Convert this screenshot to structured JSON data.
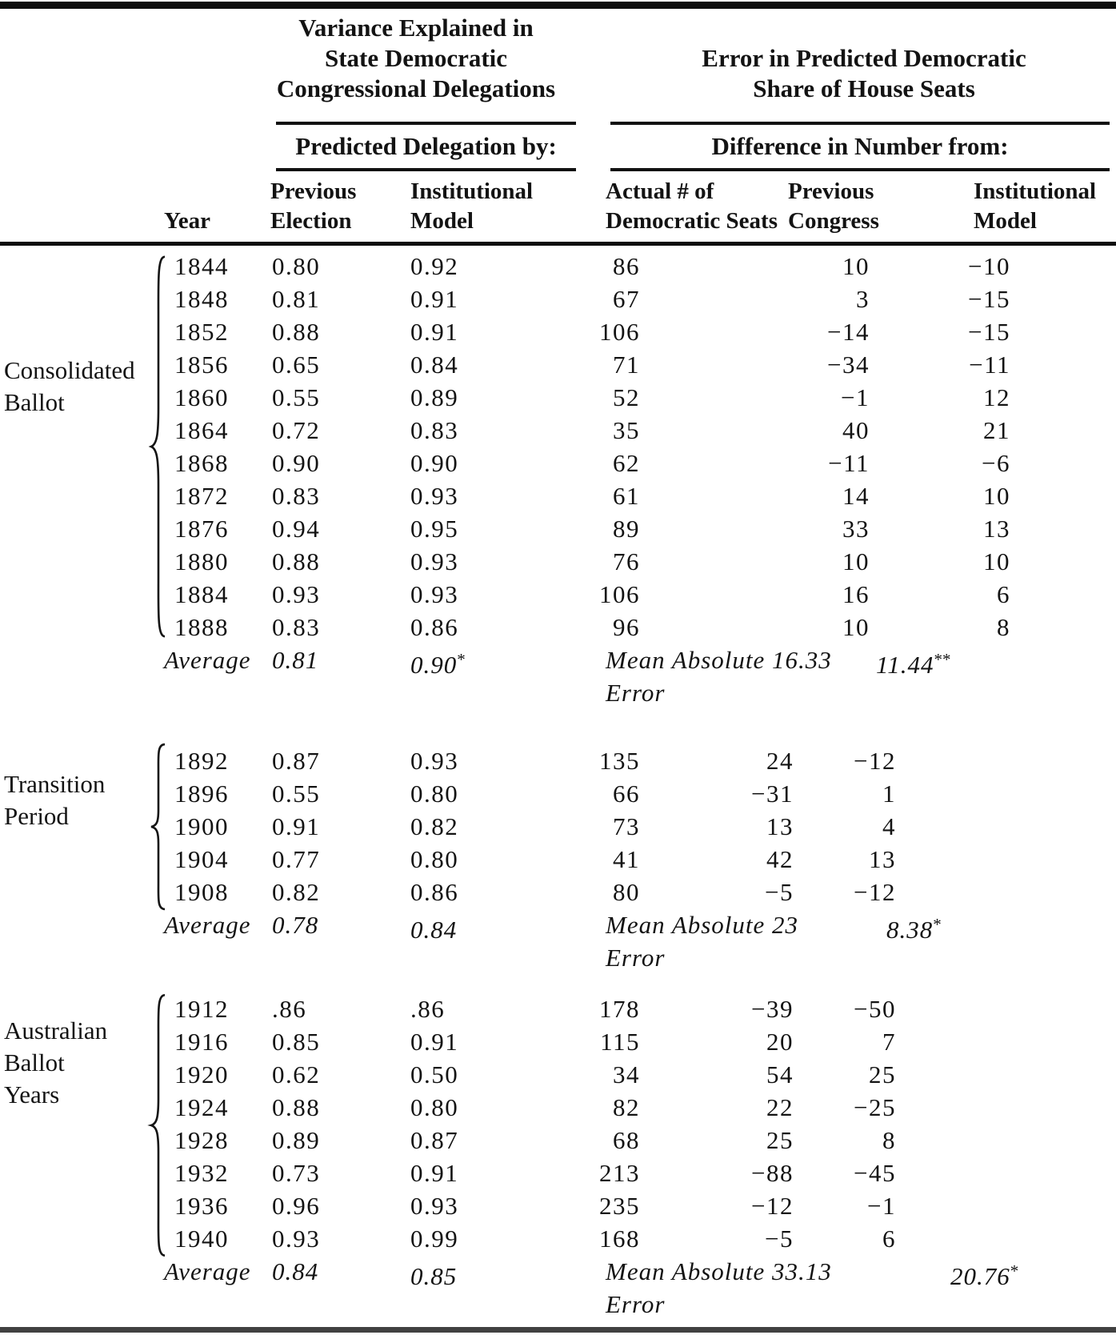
{
  "header": {
    "variance_title": "Variance Explained in\nState Democratic\nCongressional Delegations",
    "error_title": "Error in Predicted Democratic\nShare of House Seats",
    "left_subheader": "Predicted Delegation by:",
    "right_subheader": "Difference in Number from:",
    "col_year": "Year",
    "col_prev_election": "Previous\nElection",
    "col_inst_model": "Institutional\nModel",
    "col_actual_seats": "Actual # of\nDemocratic Seats",
    "col_prev_congress": "Previous\nCongress",
    "col_inst_model_err": "Institutional\nModel"
  },
  "groups": [
    {
      "label": "Consolidated\nBallot",
      "rows": [
        {
          "year": "1844",
          "prev_election": "0.80",
          "inst_model": "0.92",
          "actual_seats": "86",
          "prev_congress": "10",
          "inst_model_err": "−10"
        },
        {
          "year": "1848",
          "prev_election": "0.81",
          "inst_model": "0.91",
          "actual_seats": "67",
          "prev_congress": "3",
          "inst_model_err": "−15"
        },
        {
          "year": "1852",
          "prev_election": "0.88",
          "inst_model": "0.91",
          "actual_seats": "106",
          "prev_congress": "−14",
          "inst_model_err": "−15"
        },
        {
          "year": "1856",
          "prev_election": "0.65",
          "inst_model": "0.84",
          "actual_seats": "71",
          "prev_congress": "−34",
          "inst_model_err": "−11"
        },
        {
          "year": "1860",
          "prev_election": "0.55",
          "inst_model": "0.89",
          "actual_seats": "52",
          "prev_congress": "−1",
          "inst_model_err": "12"
        },
        {
          "year": "1864",
          "prev_election": "0.72",
          "inst_model": "0.83",
          "actual_seats": "35",
          "prev_congress": "40",
          "inst_model_err": "21"
        },
        {
          "year": "1868",
          "prev_election": "0.90",
          "inst_model": "0.90",
          "actual_seats": "62",
          "prev_congress": "−11",
          "inst_model_err": "−6"
        },
        {
          "year": "1872",
          "prev_election": "0.83",
          "inst_model": "0.93",
          "actual_seats": "61",
          "prev_congress": "14",
          "inst_model_err": "10"
        },
        {
          "year": "1876",
          "prev_election": "0.94",
          "inst_model": "0.95",
          "actual_seats": "89",
          "prev_congress": "33",
          "inst_model_err": "13"
        },
        {
          "year": "1880",
          "prev_election": "0.88",
          "inst_model": "0.93",
          "actual_seats": "76",
          "prev_congress": "10",
          "inst_model_err": "10"
        },
        {
          "year": "1884",
          "prev_election": "0.93",
          "inst_model": "0.93",
          "actual_seats": "106",
          "prev_congress": "16",
          "inst_model_err": "6"
        },
        {
          "year": "1888",
          "prev_election": "0.83",
          "inst_model": "0.86",
          "actual_seats": "96",
          "prev_congress": "10",
          "inst_model_err": "8"
        }
      ],
      "summary": {
        "label": "Average",
        "prev_election": "0.81",
        "inst_model": "0.90",
        "inst_model_note": "*",
        "error_label": "Mean Absolute\nError",
        "prev_congress": "16.33",
        "inst_model_err": "11.44",
        "inst_model_err_note": "**"
      }
    },
    {
      "label": "Transition\nPeriod",
      "rows": [
        {
          "year": "1892",
          "prev_election": "0.87",
          "inst_model": "0.93",
          "actual_seats": "135",
          "prev_congress": "24",
          "inst_model_err": "−12"
        },
        {
          "year": "1896",
          "prev_election": "0.55",
          "inst_model": "0.80",
          "actual_seats": "66",
          "prev_congress": "−31",
          "inst_model_err": "1"
        },
        {
          "year": "1900",
          "prev_election": "0.91",
          "inst_model": "0.82",
          "actual_seats": "73",
          "prev_congress": "13",
          "inst_model_err": "4"
        },
        {
          "year": "1904",
          "prev_election": "0.77",
          "inst_model": "0.80",
          "actual_seats": "41",
          "prev_congress": "42",
          "inst_model_err": "13"
        },
        {
          "year": "1908",
          "prev_election": "0.82",
          "inst_model": "0.86",
          "actual_seats": "80",
          "prev_congress": "−5",
          "inst_model_err": "−12"
        }
      ],
      "summary": {
        "label": "Average",
        "prev_election": "0.78",
        "inst_model": "0.84",
        "inst_model_note": "",
        "error_label": "Mean Absolute\nError",
        "prev_congress": "23",
        "inst_model_err": "8.38",
        "inst_model_err_note": "*"
      }
    },
    {
      "label": "Australian\nBallot\nYears",
      "rows": [
        {
          "year": "1912",
          "prev_election": ".86",
          "inst_model": ".86",
          "actual_seats": "178",
          "prev_congress": "−39",
          "inst_model_err": "−50"
        },
        {
          "year": "1916",
          "prev_election": "0.85",
          "inst_model": "0.91",
          "actual_seats": "115",
          "prev_congress": "20",
          "inst_model_err": "7"
        },
        {
          "year": "1920",
          "prev_election": "0.62",
          "inst_model": "0.50",
          "actual_seats": "34",
          "prev_congress": "54",
          "inst_model_err": "25"
        },
        {
          "year": "1924",
          "prev_election": "0.88",
          "inst_model": "0.80",
          "actual_seats": "82",
          "prev_congress": "22",
          "inst_model_err": "−25"
        },
        {
          "year": "1928",
          "prev_election": "0.89",
          "inst_model": "0.87",
          "actual_seats": "68",
          "prev_congress": "25",
          "inst_model_err": "8"
        },
        {
          "year": "1932",
          "prev_election": "0.73",
          "inst_model": "0.91",
          "actual_seats": "213",
          "prev_congress": "−88",
          "inst_model_err": "−45"
        },
        {
          "year": "1936",
          "prev_election": "0.96",
          "inst_model": "0.93",
          "actual_seats": "235",
          "prev_congress": "−12",
          "inst_model_err": "−1"
        },
        {
          "year": "1940",
          "prev_election": "0.93",
          "inst_model": "0.99",
          "actual_seats": "168",
          "prev_congress": "−5",
          "inst_model_err": "6"
        }
      ],
      "summary": {
        "label": "Average",
        "prev_election": "0.84",
        "inst_model": "0.85",
        "inst_model_note": "",
        "error_label": "Mean Absolute\nError",
        "prev_congress": "33.13",
        "inst_model_err": "20.76",
        "inst_model_err_note": "*"
      }
    }
  ],
  "colors": {
    "text": "#131313",
    "rule": "#0e0e0e",
    "bottom_rule": "#414141",
    "background": "#ffffff"
  }
}
